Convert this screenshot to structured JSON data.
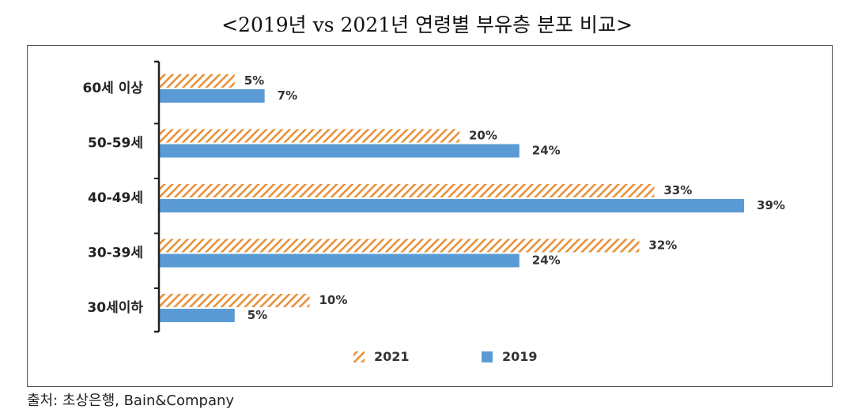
{
  "chart_data": {
    "type": "bar",
    "orientation": "horizontal",
    "title": "<2019년 vs 2021년 연령별 부유층 분포 비교>",
    "categories": [
      "60세 이상",
      "50-59세",
      "40-49세",
      "30-39세",
      "30세이하"
    ],
    "series": [
      {
        "name": "2021",
        "values": [
          5,
          20,
          33,
          32,
          10
        ],
        "labels": [
          "5%",
          "20%",
          "33%",
          "32%",
          "10%"
        ],
        "color": "#E8913A",
        "pattern": "diagonal-hatch"
      },
      {
        "name": "2019",
        "values": [
          7,
          24,
          39,
          24,
          5
        ],
        "labels": [
          "7%",
          "24%",
          "39%",
          "24%",
          "5%"
        ],
        "color": "#5B9BD5",
        "pattern": "solid"
      }
    ],
    "xlim": [
      0,
      40
    ],
    "unit": "%",
    "grid": false,
    "legend": "bottom-center"
  },
  "source": "출처: 초상은행, Bain&Company"
}
